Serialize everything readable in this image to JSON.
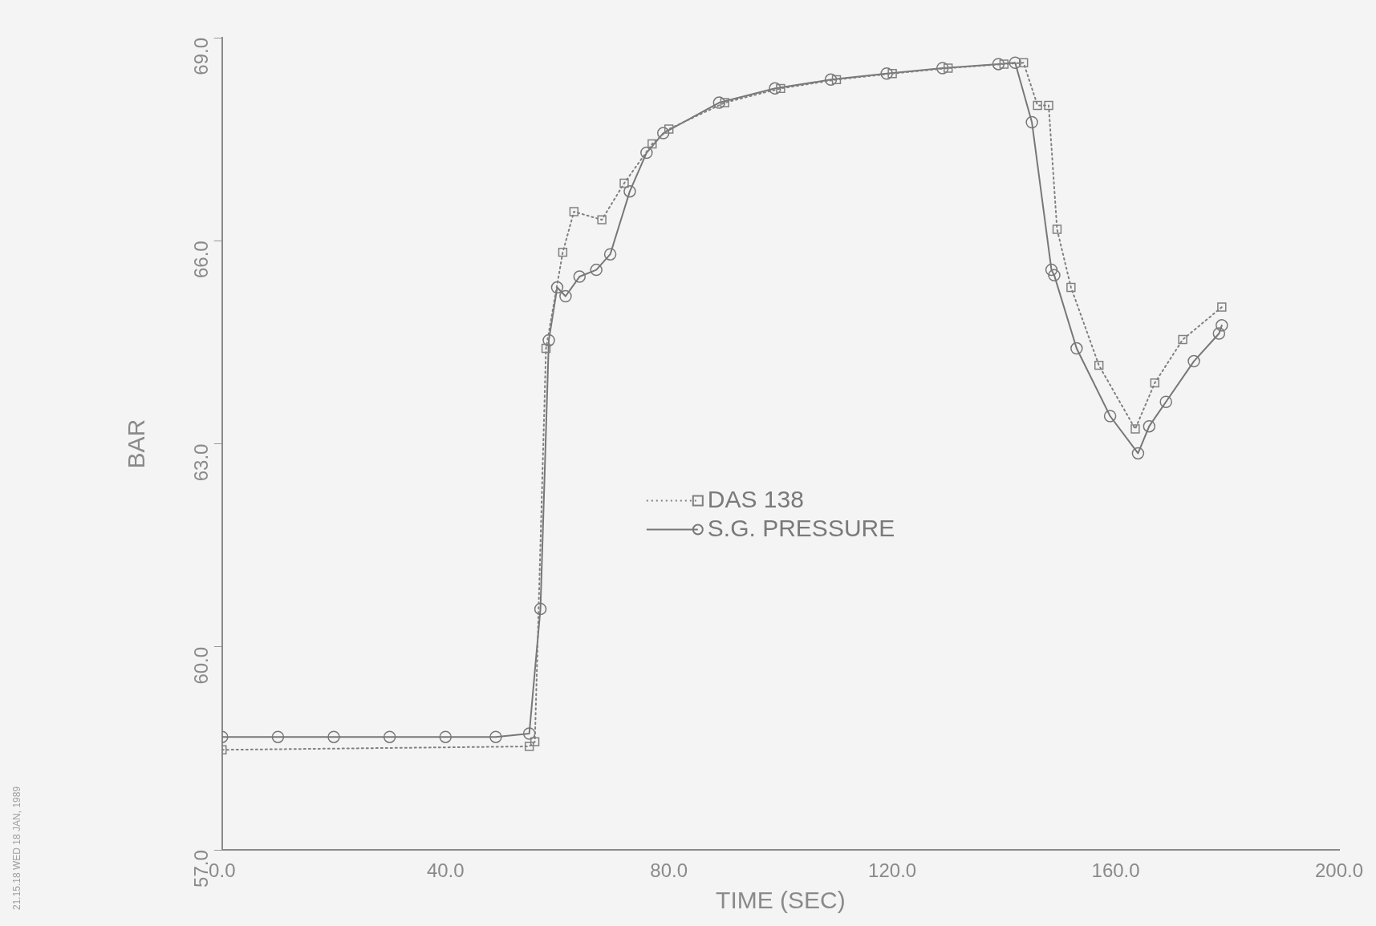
{
  "chart_data": {
    "type": "line",
    "xlabel": "TIME (SEC)",
    "ylabel": "BAR",
    "annotations": [
      "21.15.18 WED 18 JAN, 1989"
    ],
    "xlim": [
      0,
      200
    ],
    "xticks": [
      {
        "value": 0,
        "label": "0.0"
      },
      {
        "value": 40,
        "label": "40.0"
      },
      {
        "value": 80,
        "label": "80.0"
      },
      {
        "value": 120,
        "label": "120.0"
      },
      {
        "value": 160,
        "label": "160.0"
      },
      {
        "value": 200,
        "label": "200.0"
      }
    ],
    "ylim": [
      57,
      69
    ],
    "yticks": [
      {
        "value": 57,
        "label": "57.0"
      },
      {
        "value": 60,
        "label": "60.0"
      },
      {
        "value": 63,
        "label": "63.0"
      },
      {
        "value": 66,
        "label": "66.0"
      },
      {
        "value": 69,
        "label": "69.0"
      }
    ],
    "grid": false,
    "legend": "center",
    "series": [
      {
        "name": "DAS 138",
        "color": "#808080",
        "line_style": "dotted",
        "marker": "square",
        "x": [
          0,
          55,
          56,
          58,
          61,
          63,
          68,
          72,
          77,
          80,
          90,
          100,
          110,
          120,
          130,
          140,
          143.5,
          146,
          148,
          149.5,
          152,
          157,
          163.5,
          167,
          172,
          179
        ],
        "values": [
          58.48,
          58.53,
          58.6,
          64.41,
          65.83,
          66.43,
          66.31,
          66.85,
          67.43,
          67.65,
          68.04,
          68.25,
          68.38,
          68.47,
          68.55,
          68.61,
          68.63,
          68,
          68,
          66.17,
          65.31,
          64.16,
          63.22,
          63.9,
          64.54,
          65.02
        ]
      },
      {
        "name": "S.G. PRESSURE",
        "color": "#777777",
        "line_style": "solid",
        "marker": "circle",
        "x": [
          0,
          10,
          20,
          30,
          40,
          49,
          55,
          57,
          58.5,
          60,
          61.5,
          64,
          67,
          69.5,
          73,
          76,
          79,
          89,
          99,
          109,
          119,
          129,
          139,
          142,
          145,
          148.5,
          149,
          153,
          159,
          164,
          166,
          169,
          174,
          178.5,
          179
        ],
        "values": [
          58.67,
          58.67,
          58.67,
          58.67,
          58.67,
          58.67,
          58.72,
          60.56,
          64.53,
          65.31,
          65.18,
          65.47,
          65.57,
          65.8,
          66.73,
          67.3,
          67.59,
          68.04,
          68.25,
          68.38,
          68.47,
          68.55,
          68.61,
          68.63,
          67.75,
          65.57,
          65.49,
          64.41,
          63.41,
          62.86,
          63.26,
          63.62,
          64.22,
          64.63,
          64.75
        ]
      }
    ]
  }
}
